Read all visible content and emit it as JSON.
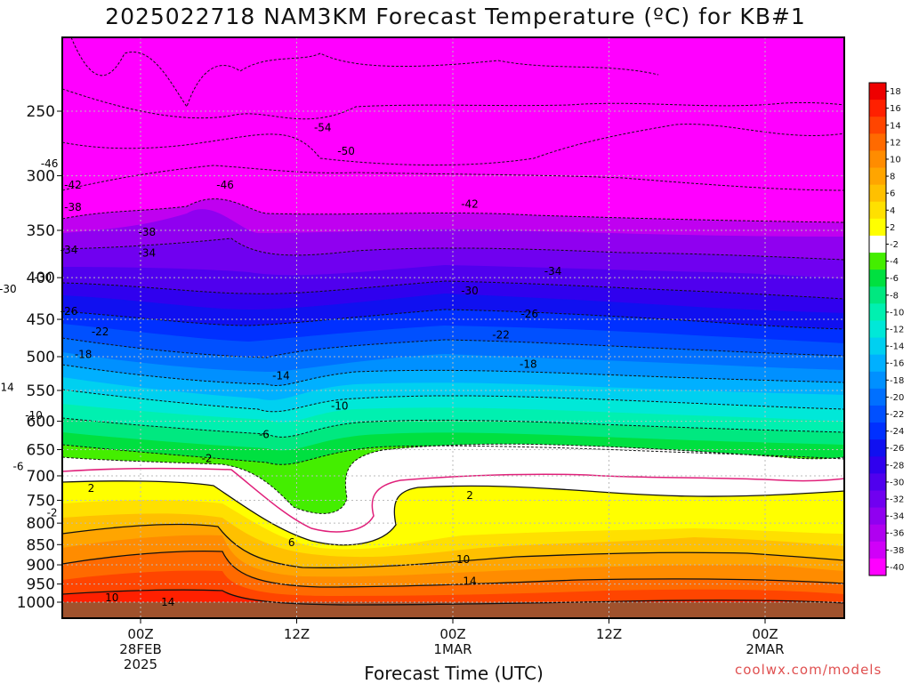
{
  "chart_data": {
    "type": "heatmap",
    "title": "2025022718 NAM3KM Forecast Temperature (ºC) for KB#1",
    "xlabel": "Forecast Time (UTC)",
    "credit": "coolwx.com/models",
    "y_axis": {
      "unit": "hPa",
      "scale": "log-pressure",
      "inverted": true,
      "ticks": [
        250,
        300,
        350,
        400,
        450,
        500,
        550,
        600,
        650,
        700,
        750,
        800,
        850,
        900,
        950,
        1000
      ]
    },
    "x_axis": {
      "ticks": [
        {
          "lines": [
            "00Z",
            "28FEB",
            "2025"
          ]
        },
        {
          "lines": [
            "12Z"
          ]
        },
        {
          "lines": [
            "00Z",
            "1MAR"
          ]
        },
        {
          "lines": [
            "12Z"
          ]
        },
        {
          "lines": [
            "00Z",
            "2MAR"
          ]
        }
      ]
    },
    "grid": true,
    "colorbar": {
      "placement": "right",
      "labels": [
        "18",
        "16",
        "14",
        "12",
        "10",
        "8",
        "6",
        "4",
        "2",
        "-2",
        "-4",
        "-6",
        "-8",
        "-10",
        "-12",
        "-14",
        "-16",
        "-18",
        "-20",
        "-22",
        "-24",
        "-26",
        "-28",
        "-30",
        "-32",
        "-34",
        "-36",
        "-38",
        "-40"
      ],
      "colors": [
        "#ee0000",
        "#ff2000",
        "#ff4500",
        "#ff6a00",
        "#ff8c00",
        "#ffa500",
        "#ffc000",
        "#ffe000",
        "#ffff00",
        "#ffffff",
        "#44ee00",
        "#00e040",
        "#00e880",
        "#00f0b0",
        "#00e8d8",
        "#00d0f0",
        "#00b0ff",
        "#0090ff",
        "#0070ff",
        "#0050ff",
        "#0030ff",
        "#1010f0",
        "#3000ee",
        "#5000ee",
        "#7000f0",
        "#9000f0",
        "#b000f0",
        "#d000f8",
        "#ff00ff"
      ]
    },
    "contour_labels": [
      {
        "value": "-54",
        "x": 14,
        "p": 262
      },
      {
        "value": "-50",
        "x": 15.8,
        "p": 280
      },
      {
        "value": "-46",
        "x": -7,
        "p": 290
      },
      {
        "value": "-46",
        "x": 6.5,
        "p": 308
      },
      {
        "value": "-42",
        "x": -5.2,
        "p": 308
      },
      {
        "value": "-42",
        "x": 25.3,
        "p": 325
      },
      {
        "value": "-38",
        "x": -5.2,
        "p": 328
      },
      {
        "value": "-38",
        "x": 0.5,
        "p": 352
      },
      {
        "value": "-34",
        "x": -5.5,
        "p": 370
      },
      {
        "value": "-34",
        "x": 0.5,
        "p": 373
      },
      {
        "value": "-34",
        "x": 31.7,
        "p": 393
      },
      {
        "value": "-30",
        "x": -7.5,
        "p": 400
      },
      {
        "value": "-30",
        "x": -10.2,
        "p": 413
      },
      {
        "value": "-30",
        "x": 25.3,
        "p": 415
      },
      {
        "value": "-26",
        "x": -5.5,
        "p": 440
      },
      {
        "value": "-26",
        "x": 29.9,
        "p": 443
      },
      {
        "value": "-22",
        "x": -28.3,
        "p": 468
      },
      {
        "value": "-22",
        "x": -3.1,
        "p": 466
      },
      {
        "value": "-22",
        "x": 27.7,
        "p": 470
      },
      {
        "value": "-18",
        "x": -4.4,
        "p": 497
      },
      {
        "value": "-18",
        "x": 29.8,
        "p": 511
      },
      {
        "value": "-18",
        "x": -16.9,
        "p": 535
      },
      {
        "value": "-14",
        "x": 10.8,
        "p": 528
      },
      {
        "value": "-14",
        "x": -10.4,
        "p": 545
      },
      {
        "value": "-10",
        "x": 15.3,
        "p": 575
      },
      {
        "value": "-10",
        "x": -8.2,
        "p": 590
      },
      {
        "value": "-10",
        "x": -31.2,
        "p": 623
      },
      {
        "value": "-6",
        "x": 9.5,
        "p": 623
      },
      {
        "value": "-6",
        "x": -9.4,
        "p": 682
      },
      {
        "value": "-2",
        "x": 5.1,
        "p": 667
      },
      {
        "value": "-2",
        "x": -34.7,
        "p": 668
      },
      {
        "value": "-2",
        "x": -6.8,
        "p": 777
      },
      {
        "value": "2",
        "x": -30.5,
        "p": 686
      },
      {
        "value": "2",
        "x": -3.8,
        "p": 725
      },
      {
        "value": "2",
        "x": 25.3,
        "p": 740
      },
      {
        "value": "6",
        "x": -29.5,
        "p": 772
      },
      {
        "value": "6",
        "x": -15.3,
        "p": 875
      },
      {
        "value": "6",
        "x": 11.6,
        "p": 845
      },
      {
        "value": "10",
        "x": -28.8,
        "p": 828
      },
      {
        "value": "10",
        "x": -2.2,
        "p": 987
      },
      {
        "value": "10",
        "x": 24.8,
        "p": 886
      },
      {
        "value": "14",
        "x": -28.2,
        "p": 938
      },
      {
        "value": "14",
        "x": 2.1,
        "p": 1000
      },
      {
        "value": "14",
        "x": 25.3,
        "p": 943
      }
    ]
  }
}
